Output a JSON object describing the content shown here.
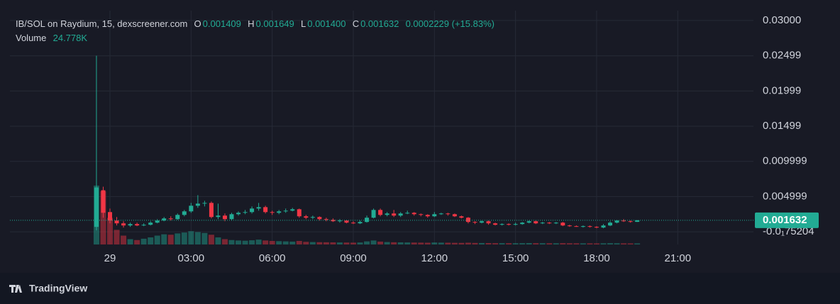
{
  "chart_data": {
    "type": "candlestick",
    "legend": {
      "title": "IB/SOL on Raydium, 15, dexscreener.com",
      "o_key": "O",
      "o": "0.001409",
      "h_key": "H",
      "h": "0.001649",
      "l_key": "L",
      "l": "0.001400",
      "c_key": "C",
      "c": "0.001632",
      "change": "0.0002229 (+15.83%)",
      "volume_key": "Volume",
      "volume": "24.778K"
    },
    "brand": "TradingView",
    "up_color": "#22ab94",
    "down_color": "#f23645",
    "grid": true,
    "xlim": [
      -3.7,
      23.8
    ],
    "xticks": [
      {
        "value": 0,
        "label": "29"
      },
      {
        "value": 3,
        "label": "03:00"
      },
      {
        "value": 6,
        "label": "06:00"
      },
      {
        "value": 9,
        "label": "09:00"
      },
      {
        "value": 12,
        "label": "12:00"
      },
      {
        "value": 15,
        "label": "15:00"
      },
      {
        "value": 18,
        "label": "18:00"
      },
      {
        "value": 21,
        "label": "21:00"
      }
    ],
    "ylim": [
      -0.0018,
      0.0314
    ],
    "yticks": [
      {
        "value": 0.03,
        "label": "0.03000"
      },
      {
        "value": 0.02499,
        "label": "0.02499"
      },
      {
        "value": 0.01999,
        "label": "0.01999"
      },
      {
        "value": 0.01499,
        "label": "0.01499"
      },
      {
        "value": 0.009999,
        "label": "0.009999"
      },
      {
        "value": 0.004999,
        "label": "0.004999"
      },
      {
        "value": -7.5204e-06,
        "label": "-0.0₁75204"
      }
    ],
    "last_price": {
      "value": 0.001632,
      "label": "0.001632"
    },
    "volume_lim": [
      0,
      1600000
    ],
    "x": [
      -0.5,
      -0.25,
      0,
      0.25,
      0.5,
      0.75,
      1,
      1.25,
      1.5,
      1.75,
      2,
      2.25,
      2.5,
      2.75,
      3,
      3.25,
      3.5,
      3.75,
      4,
      4.25,
      4.5,
      4.75,
      5,
      5.25,
      5.5,
      5.75,
      6,
      6.25,
      6.5,
      6.75,
      7,
      7.25,
      7.5,
      7.75,
      8,
      8.25,
      8.5,
      8.75,
      9,
      9.25,
      9.5,
      9.75,
      10,
      10.25,
      10.5,
      10.75,
      11,
      11.25,
      11.5,
      11.75,
      12,
      12.25,
      12.5,
      12.75,
      13,
      13.25,
      13.5,
      13.75,
      14,
      14.25,
      14.5,
      14.75,
      15,
      15.25,
      15.5,
      15.75,
      16,
      16.25,
      16.5,
      16.75,
      17,
      17.25,
      17.5,
      17.75,
      18,
      18.25,
      18.5,
      18.75,
      19,
      19.25,
      19.5
    ],
    "open": [
      0.0007,
      0.0059,
      0.0028,
      0.0016,
      0.0012,
      0.0009,
      0.0011,
      0.0009,
      0.001,
      0.0013,
      0.0016,
      0.0019,
      0.0018,
      0.0024,
      0.0029,
      0.0037,
      0.004,
      0.0041,
      0.0021,
      0.0023,
      0.0018,
      0.0025,
      0.0027,
      0.0028,
      0.0033,
      0.0035,
      0.0028,
      0.0027,
      0.0029,
      0.003,
      0.0032,
      0.0022,
      0.002,
      0.0021,
      0.0018,
      0.0017,
      0.0015,
      0.0016,
      0.0013,
      0.0012,
      0.0014,
      0.002,
      0.0031,
      0.0024,
      0.0026,
      0.0023,
      0.0026,
      0.0027,
      0.0025,
      0.0024,
      0.0022,
      0.0025,
      0.0026,
      0.0025,
      0.0022,
      0.002,
      0.0014,
      0.0013,
      0.0015,
      0.0012,
      0.001,
      0.0011,
      0.001,
      0.0011,
      0.0013,
      0.0015,
      0.0012,
      0.0013,
      0.0012,
      0.0013,
      0.0009,
      0.0008,
      0.0007,
      0.0008,
      0.0007,
      0.0006,
      0.0009,
      0.0013,
      0.0016,
      0.0015,
      0.001409
    ],
    "high": [
      0.025,
      0.0064,
      0.0033,
      0.0021,
      0.0015,
      0.0013,
      0.0013,
      0.0012,
      0.0015,
      0.0018,
      0.0021,
      0.0022,
      0.0026,
      0.0031,
      0.0041,
      0.0052,
      0.0044,
      0.0043,
      0.004,
      0.0026,
      0.0027,
      0.0029,
      0.0031,
      0.0036,
      0.0041,
      0.0037,
      0.003,
      0.0031,
      0.0033,
      0.0034,
      0.0033,
      0.0024,
      0.0023,
      0.0022,
      0.002,
      0.0019,
      0.0018,
      0.0017,
      0.0015,
      0.0016,
      0.0023,
      0.0033,
      0.0033,
      0.0028,
      0.0031,
      0.0028,
      0.003,
      0.0028,
      0.0026,
      0.0025,
      0.0028,
      0.0027,
      0.0027,
      0.0026,
      0.0023,
      0.0021,
      0.0015,
      0.0016,
      0.0016,
      0.0013,
      0.0012,
      0.0012,
      0.0013,
      0.0014,
      0.0016,
      0.0016,
      0.0014,
      0.0014,
      0.0014,
      0.0014,
      0.001,
      0.0009,
      0.0009,
      0.0009,
      0.0008,
      0.0011,
      0.0015,
      0.0017,
      0.0018,
      0.0016,
      0.001649
    ],
    "low": [
      0.0002,
      0.002,
      0.0012,
      0.0009,
      0.0006,
      0.0007,
      0.0008,
      0.0008,
      0.0009,
      0.0012,
      0.0015,
      0.0016,
      0.0017,
      0.0022,
      0.0027,
      0.0034,
      0.0036,
      0.0019,
      0.0018,
      0.0015,
      0.0016,
      0.0023,
      0.0025,
      0.0026,
      0.003,
      0.0026,
      0.0024,
      0.0025,
      0.0027,
      0.0029,
      0.002,
      0.0018,
      0.0018,
      0.0016,
      0.0015,
      0.0014,
      0.0013,
      0.0012,
      0.0011,
      0.0011,
      0.0013,
      0.0019,
      0.0022,
      0.0022,
      0.0021,
      0.0021,
      0.0025,
      0.0023,
      0.0022,
      0.002,
      0.0021,
      0.0024,
      0.0023,
      0.0021,
      0.0019,
      0.0012,
      0.0011,
      0.0012,
      0.001,
      0.0009,
      0.0009,
      0.0009,
      0.0009,
      0.001,
      0.0012,
      0.0011,
      0.0011,
      0.0011,
      0.0011,
      0.0008,
      0.0007,
      0.0007,
      0.0006,
      0.0006,
      0.0005,
      0.0005,
      0.0008,
      0.0012,
      0.0014,
      0.0013,
      0.0014
    ],
    "close": [
      0.0063,
      0.0027,
      0.0016,
      0.0012,
      0.0009,
      0.0011,
      0.0009,
      0.001,
      0.0013,
      0.0016,
      0.0019,
      0.0018,
      0.0024,
      0.0029,
      0.0037,
      0.004,
      0.0041,
      0.0021,
      0.0023,
      0.0018,
      0.0025,
      0.0027,
      0.0028,
      0.0033,
      0.0035,
      0.0028,
      0.0027,
      0.0029,
      0.003,
      0.0032,
      0.0022,
      0.002,
      0.0021,
      0.0018,
      0.0017,
      0.0015,
      0.0016,
      0.0013,
      0.0012,
      0.0014,
      0.002,
      0.0031,
      0.0024,
      0.0026,
      0.0023,
      0.0026,
      0.0027,
      0.0025,
      0.0024,
      0.0022,
      0.0025,
      0.0026,
      0.0025,
      0.0022,
      0.002,
      0.0014,
      0.0013,
      0.0015,
      0.0012,
      0.001,
      0.0011,
      0.001,
      0.0011,
      0.0013,
      0.0015,
      0.0012,
      0.0013,
      0.0012,
      0.0013,
      0.0009,
      0.0008,
      0.0007,
      0.0008,
      0.0007,
      0.0006,
      0.0009,
      0.0013,
      0.0016,
      0.0015,
      0.0014,
      0.001632
    ],
    "volume": [
      1330000,
      1200000,
      600000,
      330000,
      200000,
      120000,
      100000,
      130000,
      160000,
      200000,
      230000,
      220000,
      250000,
      270000,
      300000,
      280000,
      260000,
      220000,
      160000,
      120000,
      100000,
      90000,
      85000,
      95000,
      110000,
      90000,
      80000,
      75000,
      70000,
      65000,
      80000,
      60000,
      55000,
      52000,
      50000,
      48000,
      46000,
      44000,
      42000,
      45000,
      70000,
      90000,
      65000,
      55000,
      50000,
      48000,
      46000,
      44000,
      42000,
      40000,
      45000,
      42000,
      40000,
      38000,
      36000,
      40000,
      35000,
      33000,
      32000,
      30000,
      30000,
      29000,
      29000,
      30000,
      32000,
      30000,
      29000,
      28000,
      28000,
      30000,
      28000,
      27000,
      26000,
      26000,
      25000,
      27000,
      30000,
      28000,
      26000,
      25000,
      24778
    ]
  }
}
